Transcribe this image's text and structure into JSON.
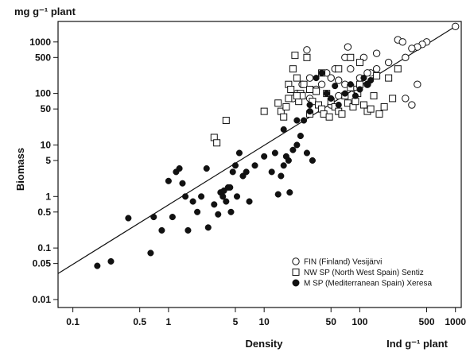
{
  "chart_data": {
    "type": "scatter",
    "title": "",
    "xlabel": "Density",
    "ylabel": "Biomass",
    "x_unit": "Ind g⁻¹ plant",
    "y_unit": "mg g⁻¹ plant",
    "xscale": "log",
    "yscale": "log",
    "xlim": [
      0.07,
      1150
    ],
    "ylim": [
      0.007,
      2500
    ],
    "x_ticks": [
      0.1,
      0.5,
      1,
      5,
      10,
      50,
      100,
      500,
      1000
    ],
    "x_tick_labels": [
      "0.1",
      "0.5",
      "1",
      "5",
      "10",
      "50",
      "100",
      "500",
      "1000"
    ],
    "y_ticks": [
      0.01,
      0.05,
      0.1,
      0.5,
      1,
      5,
      10,
      50,
      100,
      500,
      1000
    ],
    "y_tick_labels": [
      "0.01",
      "0.05",
      "0.1",
      "0.5",
      "1",
      "5",
      "10",
      "50",
      "100",
      "500",
      "1000"
    ],
    "grid": false,
    "legend_position": "bottom-right",
    "regression_line": [
      [
        0.07,
        0.032
      ],
      [
        1000,
        2000
      ]
    ],
    "series": [
      {
        "name": "FIN (Finland) Vesijärvi",
        "marker": "open-circle",
        "points": [
          [
            1000,
            2000
          ],
          [
            500,
            1000
          ],
          [
            450,
            900
          ],
          [
            400,
            800
          ],
          [
            350,
            750
          ],
          [
            250,
            1100
          ],
          [
            280,
            1000
          ],
          [
            300,
            500
          ],
          [
            200,
            400
          ],
          [
            150,
            300
          ],
          [
            130,
            250
          ],
          [
            120,
            150
          ],
          [
            100,
            200
          ],
          [
            90,
            120
          ],
          [
            80,
            300
          ],
          [
            75,
            800
          ],
          [
            70,
            500
          ],
          [
            60,
            180
          ],
          [
            55,
            300
          ],
          [
            50,
            200
          ],
          [
            45,
            250
          ],
          [
            40,
            150
          ],
          [
            35,
            120
          ],
          [
            30,
            200
          ],
          [
            28,
            700
          ],
          [
            25,
            150
          ],
          [
            22,
            100
          ],
          [
            20,
            80
          ],
          [
            400,
            150
          ],
          [
            350,
            60
          ],
          [
            300,
            80
          ],
          [
            150,
            600
          ],
          [
            110,
            500
          ],
          [
            70,
            150
          ],
          [
            60,
            90
          ],
          [
            50,
            60
          ],
          [
            30,
            80
          ],
          [
            120,
            250
          ]
        ]
      },
      {
        "name": "NW SP (North West Spain) Sentiz",
        "marker": "open-square",
        "points": [
          [
            4,
            30
          ],
          [
            3,
            14
          ],
          [
            3.2,
            11
          ],
          [
            10,
            45
          ],
          [
            14,
            65
          ],
          [
            15,
            45
          ],
          [
            16,
            35
          ],
          [
            17,
            55
          ],
          [
            18,
            80
          ],
          [
            18,
            150
          ],
          [
            19,
            120
          ],
          [
            20,
            300
          ],
          [
            21,
            550
          ],
          [
            22,
            200
          ],
          [
            23,
            70
          ],
          [
            24,
            100
          ],
          [
            25,
            90
          ],
          [
            26,
            150
          ],
          [
            28,
            500
          ],
          [
            30,
            120
          ],
          [
            32,
            70
          ],
          [
            35,
            110
          ],
          [
            37,
            60
          ],
          [
            40,
            50
          ],
          [
            42,
            40
          ],
          [
            45,
            100
          ],
          [
            48,
            35
          ],
          [
            50,
            70
          ],
          [
            55,
            55
          ],
          [
            60,
            45
          ],
          [
            65,
            40
          ],
          [
            70,
            90
          ],
          [
            75,
            65
          ],
          [
            80,
            130
          ],
          [
            85,
            55
          ],
          [
            90,
            70
          ],
          [
            95,
            100
          ],
          [
            100,
            150
          ],
          [
            110,
            60
          ],
          [
            120,
            45
          ],
          [
            130,
            50
          ],
          [
            140,
            90
          ],
          [
            150,
            220
          ],
          [
            160,
            40
          ],
          [
            180,
            55
          ],
          [
            200,
            200
          ],
          [
            220,
            80
          ],
          [
            250,
            300
          ],
          [
            100,
            400
          ],
          [
            80,
            500
          ],
          [
            60,
            300
          ],
          [
            40,
            250
          ],
          [
            22,
            90
          ],
          [
            30,
            40
          ]
        ]
      },
      {
        "name": "M SP (Mediterranean Spain) Xeresa",
        "marker": "filled-circle",
        "points": [
          [
            0.18,
            0.045
          ],
          [
            0.25,
            0.055
          ],
          [
            0.38,
            0.38
          ],
          [
            0.65,
            0.08
          ],
          [
            0.7,
            0.4
          ],
          [
            0.85,
            0.22
          ],
          [
            1,
            2
          ],
          [
            1.1,
            0.4
          ],
          [
            1.2,
            3
          ],
          [
            1.3,
            3.5
          ],
          [
            1.4,
            1.8
          ],
          [
            1.5,
            1
          ],
          [
            1.6,
            0.22
          ],
          [
            1.8,
            0.8
          ],
          [
            2,
            0.5
          ],
          [
            2.2,
            1
          ],
          [
            2.5,
            3.5
          ],
          [
            2.6,
            0.25
          ],
          [
            3,
            0.7
          ],
          [
            3.3,
            0.45
          ],
          [
            3.5,
            1.2
          ],
          [
            3.7,
            1
          ],
          [
            3.8,
            1.3
          ],
          [
            4,
            0.8
          ],
          [
            4.2,
            1.5
          ],
          [
            4.4,
            1.5
          ],
          [
            4.5,
            0.5
          ],
          [
            4.7,
            3
          ],
          [
            5,
            4
          ],
          [
            5.2,
            1
          ],
          [
            5.5,
            7
          ],
          [
            6,
            2.5
          ],
          [
            6.5,
            3
          ],
          [
            7,
            0.8
          ],
          [
            8,
            4
          ],
          [
            10,
            6
          ],
          [
            12,
            3
          ],
          [
            13,
            7
          ],
          [
            14,
            1.1
          ],
          [
            15,
            2.5
          ],
          [
            16,
            4
          ],
          [
            17,
            6
          ],
          [
            18,
            5
          ],
          [
            18.5,
            1.2
          ],
          [
            16,
            20
          ],
          [
            20,
            8
          ],
          [
            22,
            10
          ],
          [
            24,
            15
          ],
          [
            26,
            30
          ],
          [
            28,
            7
          ],
          [
            30,
            45
          ],
          [
            32,
            5
          ],
          [
            35,
            200
          ],
          [
            40,
            250
          ],
          [
            45,
            100
          ],
          [
            50,
            80
          ],
          [
            55,
            140
          ],
          [
            60,
            60
          ],
          [
            70,
            100
          ],
          [
            80,
            150
          ],
          [
            90,
            90
          ],
          [
            100,
            120
          ],
          [
            110,
            200
          ],
          [
            120,
            150
          ],
          [
            130,
            180
          ],
          [
            30,
            60
          ],
          [
            22,
            30
          ]
        ]
      }
    ]
  }
}
